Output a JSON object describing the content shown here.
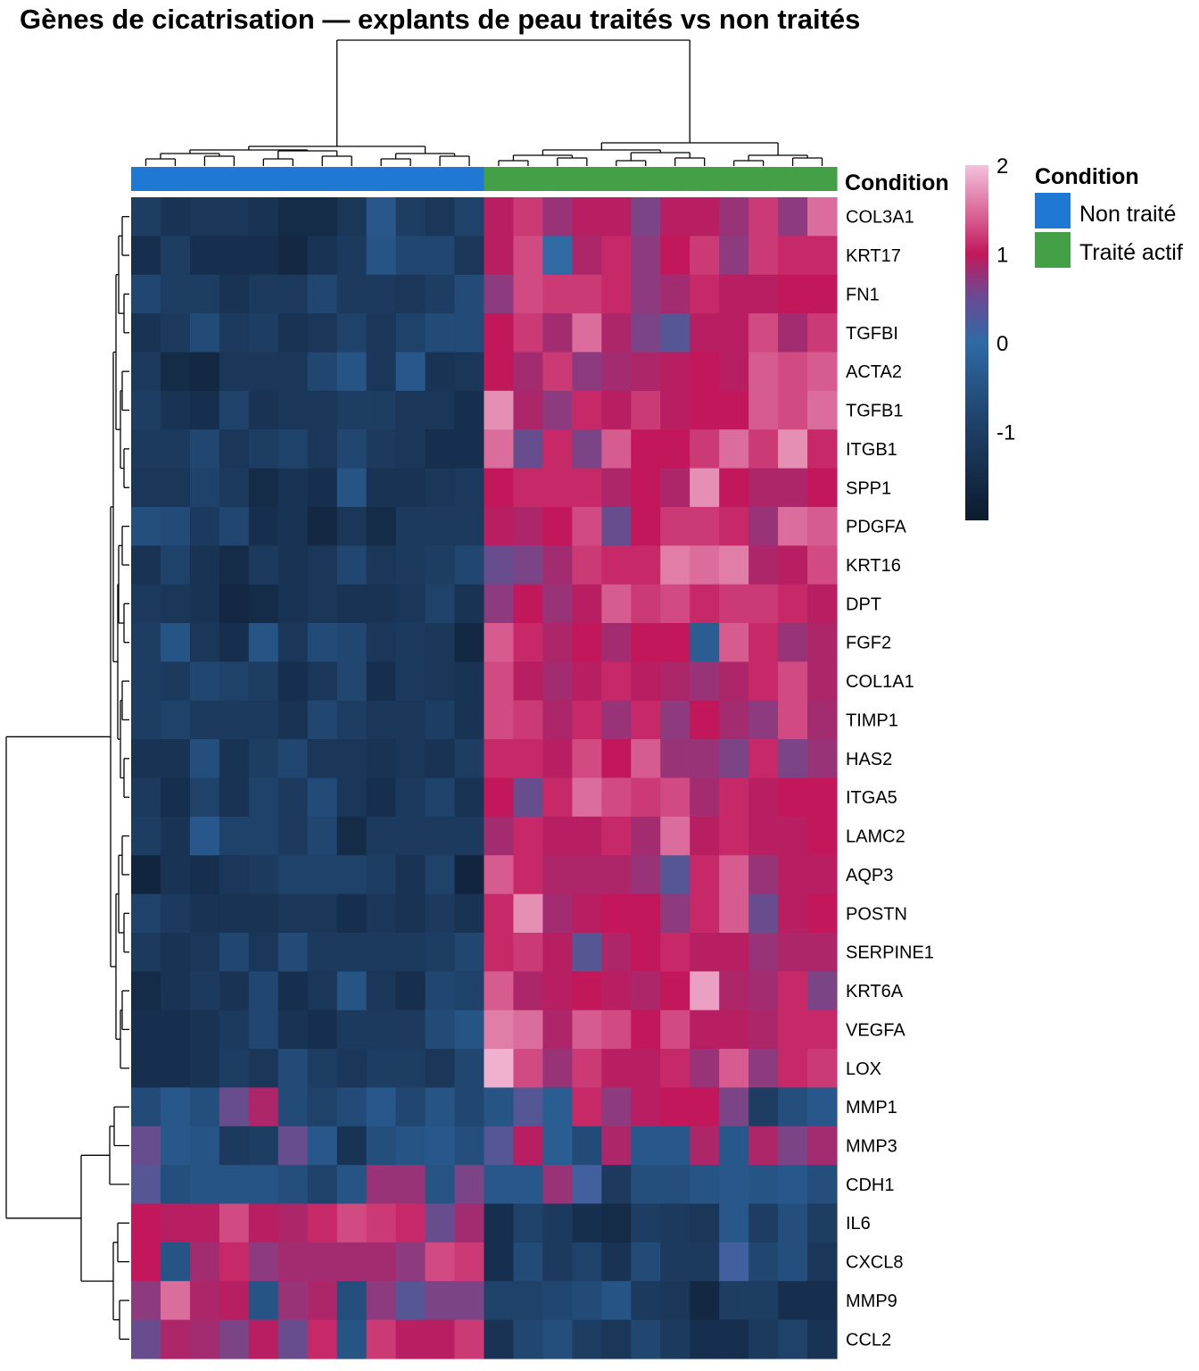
{
  "chart_data": {
    "type": "heatmap",
    "title": "Gènes de cicatrisation — explants de peau traités vs non traités",
    "rows": [
      "COL3A1",
      "KRT17",
      "FN1",
      "TGFBI",
      "ACTA2",
      "TGFB1",
      "ITGB1",
      "SPP1",
      "PDGFA",
      "KRT16",
      "DPT",
      "FGF2",
      "COL1A1",
      "TIMP1",
      "HAS2",
      "ITGA5",
      "LAMC2",
      "AQP3",
      "POSTN",
      "SERPINE1",
      "KRT6A",
      "VEGFA",
      "LOX",
      "MMP1",
      "MMP3",
      "CDH1",
      "IL6",
      "CXCL8",
      "MMP9",
      "CCL2"
    ],
    "column_conditions": [
      "Non traité",
      "Non traité",
      "Non traité",
      "Non traité",
      "Non traité",
      "Non traité",
      "Non traité",
      "Non traité",
      "Non traité",
      "Non traité",
      "Non traité",
      "Non traité",
      "Traité actif",
      "Traité actif",
      "Traité actif",
      "Traité actif",
      "Traité actif",
      "Traité actif",
      "Traité actif",
      "Traité actif",
      "Traité actif",
      "Traité actif",
      "Traité actif",
      "Traité actif"
    ],
    "values": [
      [
        -1.0,
        -1.3,
        -1.2,
        -1.2,
        -1.3,
        -1.5,
        -1.5,
        -1.2,
        -0.4,
        -1.0,
        -1.2,
        -0.9,
        0.9,
        1.2,
        0.6,
        0.9,
        0.9,
        0.4,
        0.9,
        0.9,
        0.6,
        1.2,
        0.5,
        1.5
      ],
      [
        -1.4,
        -1.0,
        -1.4,
        -1.4,
        -1.4,
        -1.6,
        -1.3,
        -1.1,
        -0.5,
        -0.8,
        -0.8,
        -1.2,
        0.9,
        1.3,
        0.0,
        0.8,
        1.1,
        0.5,
        1.0,
        1.2,
        0.5,
        1.2,
        1.1,
        1.1
      ],
      [
        -0.8,
        -1.0,
        -1.0,
        -1.3,
        -1.1,
        -1.1,
        -0.8,
        -1.1,
        -1.1,
        -1.2,
        -1.0,
        -0.7,
        0.5,
        1.3,
        1.2,
        1.2,
        1.1,
        0.5,
        0.7,
        1.1,
        0.9,
        0.9,
        1.0,
        1.0
      ],
      [
        -1.3,
        -1.1,
        -0.7,
        -1.1,
        -1.0,
        -1.3,
        -1.2,
        -0.9,
        -1.2,
        -0.9,
        -0.7,
        -0.7,
        1.0,
        1.2,
        0.7,
        1.5,
        0.8,
        0.4,
        0.2,
        0.9,
        0.9,
        1.3,
        0.7,
        1.2
      ],
      [
        -1.1,
        -1.5,
        -1.6,
        -1.2,
        -1.2,
        -1.2,
        -0.8,
        -0.5,
        -1.2,
        -0.4,
        -1.3,
        -1.2,
        1.0,
        0.7,
        1.2,
        0.5,
        0.7,
        0.8,
        0.9,
        1.0,
        0.9,
        1.4,
        1.3,
        1.4
      ],
      [
        -1.0,
        -1.3,
        -1.4,
        -0.9,
        -1.3,
        -1.2,
        -1.2,
        -1.0,
        -1.0,
        -1.2,
        -1.2,
        -1.4,
        1.7,
        0.8,
        0.5,
        1.1,
        0.9,
        1.2,
        0.9,
        1.0,
        1.0,
        1.4,
        1.3,
        1.5
      ],
      [
        -1.1,
        -1.1,
        -0.8,
        -1.2,
        -1.0,
        -0.9,
        -1.2,
        -0.8,
        -1.1,
        -1.2,
        -1.4,
        -1.4,
        1.5,
        0.3,
        1.1,
        0.4,
        1.4,
        1.0,
        1.0,
        1.2,
        1.5,
        1.2,
        1.7,
        1.1
      ],
      [
        -1.2,
        -1.2,
        -0.9,
        -1.1,
        -1.5,
        -1.3,
        -1.4,
        -0.5,
        -1.3,
        -1.3,
        -1.2,
        -1.1,
        1.0,
        1.1,
        1.1,
        1.1,
        0.8,
        1.0,
        0.8,
        1.7,
        1.0,
        0.8,
        0.8,
        1.0
      ],
      [
        -0.6,
        -0.7,
        -1.1,
        -0.8,
        -1.4,
        -1.3,
        -1.6,
        -1.2,
        -1.5,
        -1.1,
        -1.1,
        -1.1,
        0.9,
        0.8,
        1.0,
        1.3,
        0.3,
        1.0,
        1.2,
        1.2,
        1.1,
        0.6,
        1.5,
        1.4
      ],
      [
        -1.3,
        -0.9,
        -1.3,
        -1.5,
        -1.1,
        -1.3,
        -1.2,
        -0.8,
        -1.2,
        -1.1,
        -1.0,
        -0.8,
        0.3,
        0.4,
        0.7,
        1.2,
        1.1,
        1.1,
        1.6,
        1.5,
        1.6,
        0.8,
        0.9,
        1.3
      ],
      [
        -1.1,
        -1.2,
        -1.3,
        -1.6,
        -1.5,
        -1.3,
        -1.2,
        -1.3,
        -1.3,
        -1.2,
        -0.9,
        -1.3,
        0.5,
        1.0,
        0.6,
        0.9,
        1.4,
        1.2,
        1.3,
        1.1,
        1.2,
        1.2,
        1.1,
        0.9
      ],
      [
        -1.0,
        -0.5,
        -1.2,
        -1.4,
        -0.5,
        -1.2,
        -0.7,
        -0.8,
        -1.2,
        -1.1,
        -1.2,
        -1.6,
        1.4,
        1.1,
        0.8,
        1.0,
        0.7,
        1.0,
        1.0,
        -0.3,
        1.4,
        1.1,
        0.6,
        0.8
      ],
      [
        -1.0,
        -1.1,
        -0.8,
        -0.9,
        -1.0,
        -1.4,
        -1.2,
        -0.8,
        -1.4,
        -1.1,
        -1.2,
        -1.3,
        1.3,
        0.9,
        0.7,
        0.9,
        1.1,
        0.9,
        0.8,
        0.6,
        0.8,
        1.1,
        1.3,
        0.8
      ],
      [
        -1.0,
        -0.9,
        -1.1,
        -1.1,
        -1.1,
        -1.3,
        -0.8,
        -1.0,
        -1.2,
        -1.2,
        -1.0,
        -1.3,
        1.3,
        1.2,
        0.8,
        1.1,
        0.6,
        1.1,
        0.5,
        1.0,
        0.7,
        0.5,
        1.3,
        0.7
      ],
      [
        -1.3,
        -1.3,
        -0.6,
        -1.3,
        -1.0,
        -0.8,
        -1.2,
        -1.2,
        -1.3,
        -1.2,
        -1.3,
        -1.0,
        1.1,
        1.1,
        0.9,
        1.3,
        1.0,
        1.4,
        0.6,
        0.6,
        0.4,
        1.1,
        0.4,
        0.6
      ],
      [
        -1.1,
        -1.4,
        -0.9,
        -1.3,
        -0.9,
        -1.1,
        -0.7,
        -1.2,
        -1.4,
        -1.1,
        -0.9,
        -1.3,
        1.0,
        0.3,
        1.1,
        1.5,
        1.3,
        1.2,
        1.3,
        0.7,
        1.1,
        0.9,
        1.0,
        1.0
      ],
      [
        -1.0,
        -1.3,
        -0.4,
        -0.9,
        -0.9,
        -1.1,
        -0.8,
        -1.5,
        -1.1,
        -1.1,
        -1.1,
        -1.1,
        0.7,
        1.1,
        0.9,
        0.9,
        1.1,
        0.7,
        1.5,
        0.9,
        1.1,
        0.9,
        0.9,
        1.0
      ],
      [
        -1.7,
        -1.3,
        -1.4,
        -1.2,
        -1.1,
        -0.9,
        -0.9,
        -0.9,
        -1.0,
        -1.3,
        -0.9,
        -1.7,
        1.4,
        1.1,
        0.8,
        0.8,
        0.8,
        0.6,
        0.2,
        1.1,
        1.4,
        0.6,
        0.9,
        0.9
      ],
      [
        -0.9,
        -1.1,
        -1.3,
        -1.3,
        -1.3,
        -1.2,
        -1.2,
        -1.4,
        -1.2,
        -1.3,
        -1.1,
        -1.3,
        1.1,
        1.7,
        0.7,
        0.9,
        1.0,
        1.0,
        0.5,
        1.1,
        1.4,
        0.3,
        0.9,
        1.0
      ],
      [
        -1.1,
        -1.3,
        -1.2,
        -0.8,
        -1.2,
        -0.7,
        -1.1,
        -1.1,
        -1.1,
        -1.1,
        -1.0,
        -0.8,
        1.1,
        1.2,
        0.9,
        0.2,
        0.8,
        1.0,
        1.1,
        0.9,
        0.9,
        0.6,
        0.8,
        0.8
      ],
      [
        -1.5,
        -1.3,
        -1.1,
        -1.3,
        -0.8,
        -1.4,
        -1.2,
        -0.5,
        -1.2,
        -1.4,
        -0.8,
        -0.9,
        1.4,
        0.8,
        0.9,
        1.0,
        0.9,
        0.8,
        1.0,
        1.8,
        0.8,
        0.7,
        1.1,
        0.4
      ],
      [
        -1.4,
        -1.4,
        -1.3,
        -1.1,
        -0.8,
        -1.3,
        -1.4,
        -1.1,
        -1.1,
        -1.1,
        -0.7,
        -0.5,
        1.6,
        1.5,
        0.8,
        1.4,
        1.3,
        1.0,
        1.3,
        0.9,
        0.9,
        0.8,
        1.1,
        1.1
      ],
      [
        -1.4,
        -1.4,
        -1.3,
        -1.0,
        -1.2,
        -0.7,
        -1.0,
        -1.2,
        -1.0,
        -1.0,
        -1.2,
        -0.8,
        1.9,
        1.3,
        0.6,
        1.2,
        0.9,
        0.9,
        1.1,
        0.6,
        1.4,
        0.5,
        1.1,
        1.2
      ],
      [
        -0.7,
        -0.4,
        -0.6,
        0.3,
        0.8,
        -0.7,
        -0.9,
        -0.7,
        -0.4,
        -0.8,
        -0.5,
        -0.8,
        -0.5,
        0.2,
        -0.3,
        1.1,
        0.5,
        0.9,
        1.0,
        1.0,
        0.4,
        -1.0,
        -0.6,
        -0.4
      ],
      [
        0.3,
        -0.4,
        -0.5,
        -1.1,
        -1.0,
        0.3,
        -0.4,
        -1.3,
        -0.6,
        -0.5,
        -0.4,
        -0.6,
        0.2,
        0.9,
        -0.3,
        -0.7,
        0.8,
        -0.4,
        -0.4,
        0.8,
        -0.4,
        0.8,
        0.4,
        0.7
      ],
      [
        0.2,
        -0.6,
        -0.5,
        -0.5,
        -0.5,
        -0.6,
        -0.9,
        -0.5,
        0.6,
        0.6,
        -0.5,
        0.4,
        -0.4,
        -0.4,
        0.6,
        0.1,
        -1.1,
        -0.6,
        -0.6,
        -0.5,
        -0.4,
        -0.5,
        -0.4,
        -0.6
      ],
      [
        1.0,
        0.9,
        0.9,
        1.3,
        0.9,
        0.8,
        1.1,
        1.3,
        1.2,
        1.1,
        0.3,
        0.7,
        -1.4,
        -0.9,
        -1.1,
        -1.4,
        -1.5,
        -1.0,
        -1.1,
        -1.2,
        -0.4,
        -1.0,
        -0.6,
        -1.0
      ],
      [
        1.0,
        -0.5,
        0.7,
        1.1,
        0.5,
        0.7,
        0.7,
        0.7,
        0.7,
        0.5,
        1.3,
        1.2,
        -1.4,
        -0.7,
        -1.1,
        -0.9,
        -1.3,
        -0.7,
        -1.1,
        -1.1,
        0.1,
        -0.8,
        -0.6,
        -1.2
      ],
      [
        0.5,
        1.5,
        0.8,
        0.9,
        -0.5,
        0.6,
        0.8,
        -0.6,
        0.5,
        0.2,
        0.4,
        0.4,
        -0.9,
        -0.9,
        -0.8,
        -0.7,
        -0.5,
        -1.1,
        -1.2,
        -1.6,
        -1.0,
        -1.0,
        -1.4,
        -1.4
      ],
      [
        0.3,
        0.8,
        0.7,
        0.4,
        0.9,
        0.3,
        1.1,
        -0.5,
        1.2,
        0.9,
        0.9,
        1.2,
        -1.3,
        -0.8,
        -0.6,
        -1.0,
        -1.2,
        -0.8,
        -1.1,
        -1.4,
        -1.4,
        -1.1,
        -0.9,
        -1.3
      ]
    ],
    "annotation_label": "Condition",
    "legend": {
      "title": "Condition",
      "entries": [
        {
          "label": "Non traité",
          "color": "#1f78d4"
        },
        {
          "label": "Traité actif",
          "color": "#43a047"
        }
      ]
    },
    "colorbar": {
      "ticks": [
        "2",
        "1",
        "0",
        "-1"
      ],
      "tick_values": [
        2,
        1,
        0,
        -1
      ],
      "range": [
        -2,
        2
      ]
    },
    "colors": {
      "low": "#0d1b2e",
      "mid": "#2f6aa5",
      "mid_high": "#8e3a7e",
      "high": "#c2185b",
      "top": "#f4c2dc"
    }
  }
}
